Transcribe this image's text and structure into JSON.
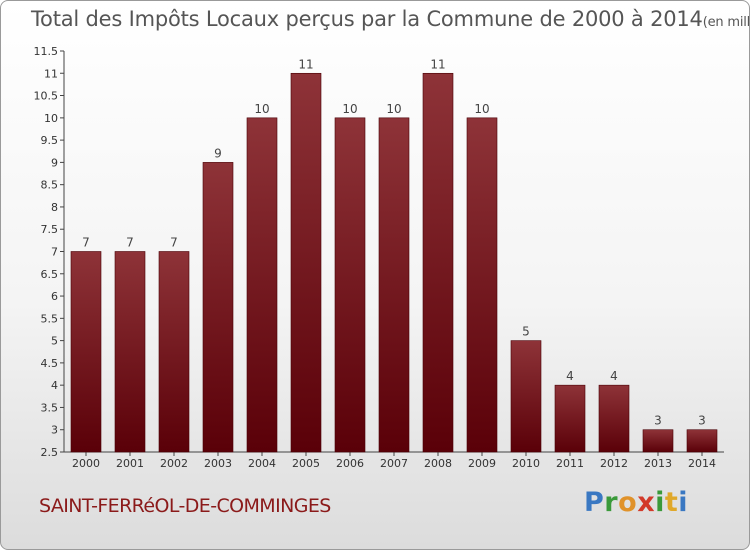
{
  "chart_data": {
    "type": "bar",
    "title": "Total des Impôts Locaux perçus par la Commune de 2000 à 2014",
    "unit_label": "(en milliers d'€)",
    "categories": [
      "2000",
      "2001",
      "2002",
      "2003",
      "2004",
      "2005",
      "2006",
      "2007",
      "2008",
      "2009",
      "2010",
      "2011",
      "2012",
      "2013",
      "2014"
    ],
    "values": [
      7,
      7,
      7,
      9,
      10,
      11,
      10,
      10,
      11,
      10,
      5,
      4,
      4,
      3,
      3
    ],
    "value_labels": [
      "7",
      "7",
      "7",
      "9",
      "10",
      "11",
      "10",
      "10",
      "11",
      "10",
      "5",
      "4",
      "4",
      "3",
      "3"
    ],
    "ylim": [
      2.5,
      11.5
    ],
    "yticks": [
      2.5,
      3,
      3.5,
      4,
      4.5,
      5,
      5.5,
      6,
      6.5,
      7,
      7.5,
      8,
      8.5,
      9,
      9.5,
      10,
      10.5,
      11,
      11.5
    ],
    "ytick_labels": [
      "2.5",
      "3",
      "3.5",
      "4",
      "4.5",
      "5",
      "5.5",
      "6",
      "6.5",
      "7",
      "7.5",
      "8",
      "8.5",
      "9",
      "9.5",
      "10",
      "10.5",
      "11",
      "11.5"
    ],
    "xlabel": "",
    "ylabel": "",
    "grid": false,
    "bar_color": "#7a1a1e"
  },
  "commune_name": "SAINT-FERRéOL-DE-COMMINGES",
  "logo": {
    "p": "P",
    "r": "r",
    "o": "o",
    "x": "x",
    "i1": "i",
    "t": "t",
    "i2": "i"
  }
}
